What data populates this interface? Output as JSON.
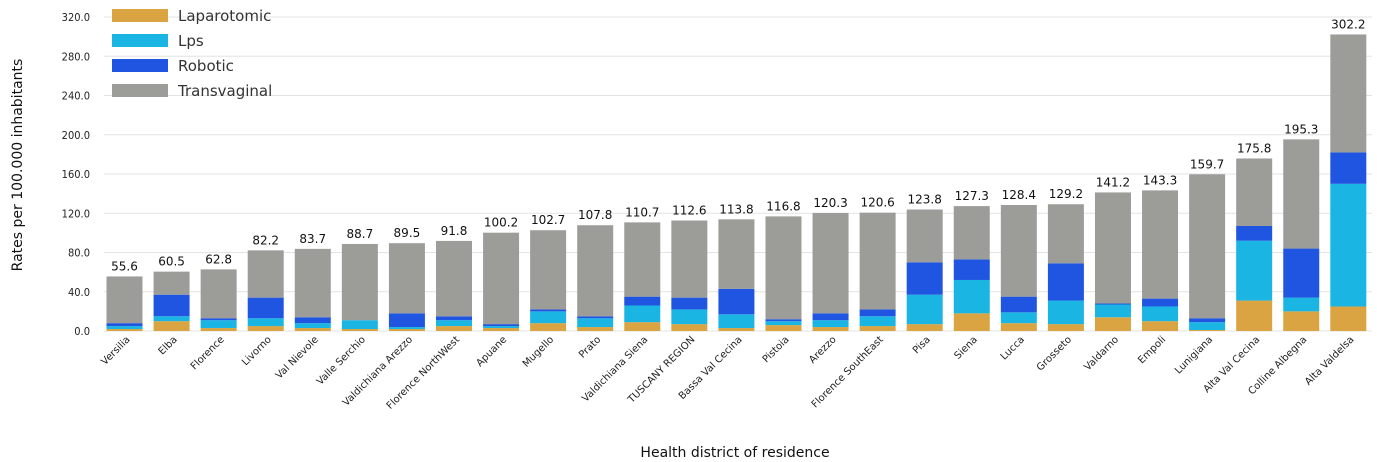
{
  "chart_data": {
    "type": "bar",
    "stacked": true,
    "xlabel": "Health district of residence",
    "ylabel": "Rates per 100.000 inhabitants",
    "ylim": [
      0,
      320
    ],
    "yticks": [
      0,
      40,
      80,
      120,
      160,
      200,
      240,
      280,
      320
    ],
    "ytick_labels": [
      "0.0",
      "40.0",
      "80.0",
      "120.0",
      "160.0",
      "200.0",
      "240.0",
      "280.0",
      "320.0"
    ],
    "grid": true,
    "legend_position": "top-left",
    "categories": [
      "Versilia",
      "Elba",
      "Florence",
      "Livorno",
      "Val Nievole",
      "Valle Serchio",
      "Valdichiana Arezzo",
      "Florence NorthWest",
      "Apuane",
      "Mugello",
      "Prato",
      "Valdichiana Siena",
      "TUSCANY REGION",
      "Bassa Val Cecina",
      "Pistoia",
      "Arezzo",
      "Florence SouthEast",
      "Pisa",
      "Siena",
      "Lucca",
      "Grosseto",
      "Valdarno",
      "Empoli",
      "Lunigiana",
      "Alta Val Cecina",
      "Colline Albegna",
      "Alta Valdelsa"
    ],
    "series": [
      {
        "name": "Laparotomic",
        "color": "#D9A441",
        "values": [
          2,
          10,
          3,
          5,
          3,
          2,
          2,
          5,
          3,
          8,
          4,
          9,
          7,
          3,
          6,
          4,
          5,
          7,
          18,
          8,
          7,
          14,
          10,
          1,
          31,
          20,
          25
        ]
      },
      {
        "name": "Lps",
        "color": "#1BB5E3",
        "values": [
          3,
          5,
          8,
          8,
          5,
          9,
          2,
          6,
          2,
          12,
          9,
          17,
          15,
          14,
          4,
          7,
          10,
          30,
          34,
          11,
          24,
          13,
          15,
          8,
          61,
          14,
          125
        ]
      },
      {
        "name": "Robotic",
        "color": "#1F55E0",
        "values": [
          3,
          22,
          2,
          21,
          6,
          0,
          14,
          4,
          2,
          2,
          2,
          9,
          12,
          26,
          2,
          7,
          7,
          33,
          21,
          16,
          38,
          1,
          8,
          4,
          15,
          50,
          32
        ]
      },
      {
        "name": "Transvaginal",
        "color": "#9C9C98",
        "values": [
          47.6,
          23.5,
          49.8,
          48.2,
          69.7,
          77.7,
          71.5,
          76.8,
          93.2,
          80.7,
          92.8,
          75.7,
          78.6,
          70.8,
          104.8,
          102.3,
          98.6,
          53.8,
          54.3,
          93.4,
          60.2,
          113.2,
          110.3,
          146.7,
          68.8,
          111.3,
          120.2
        ]
      }
    ],
    "totals": [
      55.6,
      60.5,
      62.8,
      82.2,
      83.7,
      88.7,
      89.5,
      91.8,
      100.2,
      102.7,
      107.8,
      110.7,
      112.6,
      113.8,
      116.8,
      120.3,
      120.6,
      123.8,
      127.3,
      128.4,
      129.2,
      141.2,
      143.3,
      159.7,
      175.8,
      195.3,
      302.2
    ],
    "total_labels": [
      "55.6",
      "60.5",
      "62.8",
      "82.2",
      "83.7",
      "88.7",
      "89.5",
      "91.8",
      "100.2",
      "102.7",
      "107.8",
      "110.7",
      "112.6",
      "113.8",
      "116.8",
      "120.3",
      "120.6",
      "123.8",
      "127.3",
      "128.4",
      "129.2",
      "141.2",
      "143.3",
      "159.7",
      "175.8",
      "195.3",
      "302.2"
    ]
  }
}
